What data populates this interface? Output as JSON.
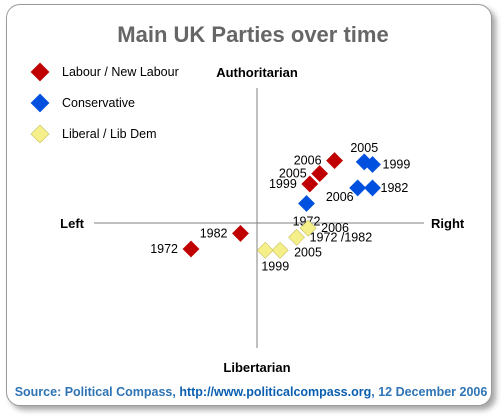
{
  "chart_data": {
    "type": "scatter",
    "title": "Main UK Parties over time",
    "axis_labels": {
      "top": "Authoritarian",
      "bottom": "Libertarian",
      "left": "Left",
      "right": "Right"
    },
    "xlim": [
      -10,
      10
    ],
    "ylim": [
      -10,
      10
    ],
    "grid": false,
    "legend_position": "top-left",
    "series": [
      {
        "name": "Labour / New Labour",
        "color": "#c00000",
        "marker": "diamond",
        "points": [
          {
            "label": "1972",
            "x": -4.0,
            "y": -2.0
          },
          {
            "label": "1982",
            "x": -1.0,
            "y": -0.8
          },
          {
            "label": "1999",
            "x": 3.2,
            "y": 3.0
          },
          {
            "label": "2005",
            "x": 3.8,
            "y": 3.8
          },
          {
            "label": "2006",
            "x": 4.7,
            "y": 4.8
          }
        ]
      },
      {
        "name": "Conservative",
        "color": "#0050e0",
        "marker": "diamond",
        "points": [
          {
            "label": "1972",
            "x": 3.0,
            "y": 1.5
          },
          {
            "label": "1982",
            "x": 7.0,
            "y": 2.7
          },
          {
            "label": "1999",
            "x": 7.0,
            "y": 4.5
          },
          {
            "label": "2005",
            "x": 6.5,
            "y": 4.7
          },
          {
            "label": "2006",
            "x": 6.1,
            "y": 2.7
          }
        ]
      },
      {
        "name": "Liberal / Lib Dem",
        "color": "#f5ef8a",
        "marker": "diamond",
        "points": [
          {
            "label": "1972  /1982",
            "x": 2.4,
            "y": -1.1
          },
          {
            "label": "2005",
            "x": 1.4,
            "y": -2.1
          },
          {
            "label": "1999",
            "x": 0.5,
            "y": -2.1
          },
          {
            "label": "2006",
            "x": 3.1,
            "y": -0.4
          }
        ]
      }
    ]
  },
  "source": {
    "prefix": "Source: Political Compass, ",
    "link": "http://www.politicalcompass.org",
    "suffix": ", 12 December 2006"
  }
}
